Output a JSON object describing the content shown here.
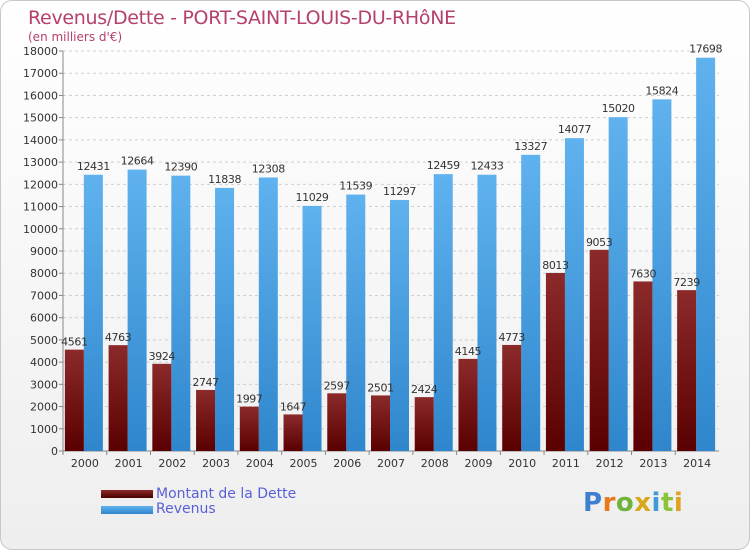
{
  "title": "Revenus/Dette - PORT-SAINT-LOUIS-DU-RHôNE",
  "subtitle": "(en milliers d'€)",
  "logo_letters": [
    "P",
    "r",
    "o",
    "x",
    "i",
    "t",
    "i"
  ],
  "colors": {
    "title": "#b5406e",
    "dette": "#7a1010",
    "revenus": "#3a9be0",
    "legend_text": "#5a5fd8",
    "logo": [
      "#3f7fd0",
      "#e87a1c",
      "#6fb33a",
      "#d8a81c",
      "#3f9ad8",
      "#8bc43a",
      "#e0a020"
    ]
  },
  "chart_data": {
    "type": "bar",
    "categories": [
      "2000",
      "2001",
      "2002",
      "2003",
      "2004",
      "2005",
      "2006",
      "2007",
      "2008",
      "2009",
      "2010",
      "2011",
      "2012",
      "2013",
      "2014"
    ],
    "series": [
      {
        "name": "Montant de la Dette",
        "values": [
          4561,
          4763,
          3924,
          2747,
          1997,
          1647,
          2597,
          2501,
          2424,
          4145,
          4773,
          8013,
          9053,
          7630,
          7239
        ],
        "labels": [
          "4561",
          "4763",
          "3924",
          "2747",
          "1997",
          "1647",
          "2597",
          "2501",
          "2424",
          "4145",
          "4773",
          "8013",
          "9053",
          "7630",
          "7239"
        ]
      },
      {
        "name": "Revenus",
        "values": [
          12431,
          12664,
          12390,
          11838,
          12308,
          11029,
          11539,
          11297,
          12459,
          12433,
          13327,
          14077,
          15020,
          15824,
          17698
        ],
        "labels": [
          "12431",
          "12664",
          "12390",
          "11838",
          "12308",
          "11029",
          "11539",
          "11297",
          "12459",
          "12433",
          "13327",
          "14077",
          "15020",
          "15824",
          "17698"
        ]
      }
    ],
    "yticks": [
      "0",
      "1000",
      "2000",
      "3000",
      "4000",
      "5000",
      "6000",
      "7000",
      "8000",
      "9000",
      "10000",
      "11000",
      "12000",
      "13000",
      "14000",
      "15000",
      "16000",
      "17000",
      "18000"
    ],
    "ylim": [
      0,
      18000
    ],
    "grid": true,
    "legend_position": "bottom-left"
  }
}
